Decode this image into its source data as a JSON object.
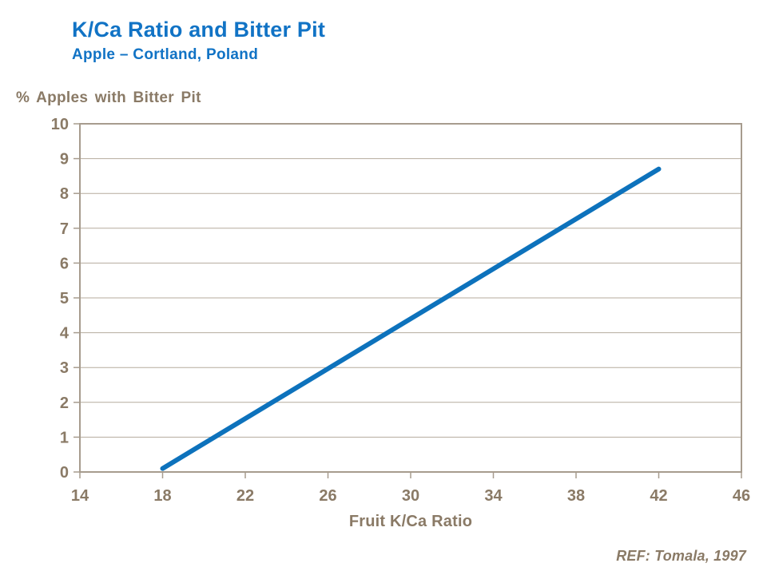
{
  "header": {
    "title": "K/Ca Ratio and Bitter Pit",
    "subtitle": "Apple – Cortland, Poland"
  },
  "footer": {
    "reference": "REF: Tomala, 1997"
  },
  "chart_data": {
    "type": "line",
    "title": "K/Ca Ratio and Bitter Pit",
    "subtitle": "Apple – Cortland, Poland",
    "ylabel": "% Apples with Bitter Pit",
    "xlabel": "Fruit K/Ca Ratio",
    "xlim": [
      14,
      46
    ],
    "ylim": [
      0,
      10
    ],
    "x_ticks": [
      14,
      18,
      22,
      26,
      30,
      34,
      38,
      42,
      46
    ],
    "y_ticks": [
      0,
      1,
      2,
      3,
      4,
      5,
      6,
      7,
      8,
      9,
      10
    ],
    "grid": "horizontal",
    "legend": "none",
    "series": [
      {
        "x": [
          18,
          42
        ],
        "y": [
          0.1,
          8.7
        ],
        "color": "#0D72BC",
        "line_width": 6
      }
    ],
    "colors": {
      "title_text": "#1173C5",
      "axis_text": "#8A7A66",
      "gridline": "#B5AB9E",
      "axis_border": "#A79C8E",
      "background": "#FFFFFF"
    }
  }
}
